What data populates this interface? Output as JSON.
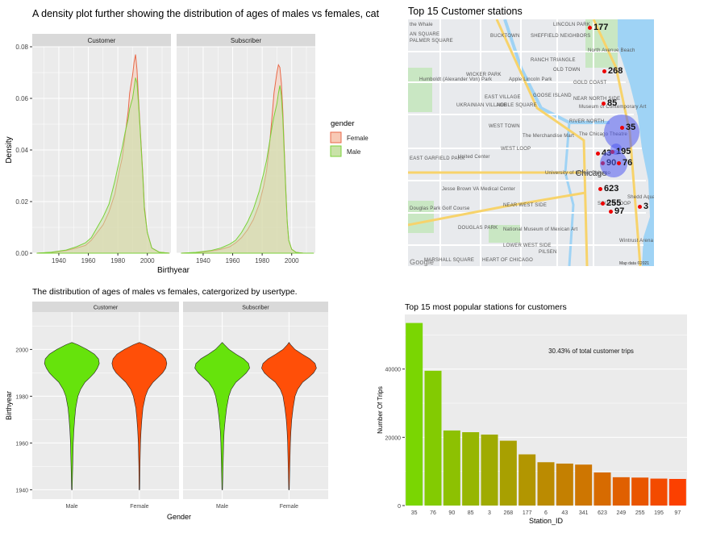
{
  "density_title": "A density plot further showing the distribution of ages of males vs females, catergorized by usertype.",
  "map_title": "Top 15 Customer stations",
  "violin_title": "The distribution of ages of males vs females, catergorized by usertype.",
  "bar_title": "Top 15 most popular stations for customers",
  "colors": {
    "female_fill": "#f8c9b5",
    "female_line": "#e8694a",
    "male_fill": "#c9e2a8",
    "male_line": "#7bd13a",
    "violin_male": "#66e30c",
    "violin_female": "#ff4f08",
    "panel_bg": "#ebebeb",
    "strip_bg": "#d9d9d9"
  },
  "chart_data": [
    {
      "type": "area",
      "facets": [
        "Customer",
        "Subscriber"
      ],
      "xlabel": "Birthyear",
      "ylabel": "Density",
      "xticks": [
        "1940",
        "1960",
        "1980",
        "2000"
      ],
      "yticks": [
        "0.00",
        "0.02",
        "0.04",
        "0.06",
        "0.08"
      ],
      "xlim": [
        1922,
        2016
      ],
      "ylim": [
        0,
        0.08
      ],
      "legend": {
        "title": "gender",
        "placement": "right",
        "items": [
          "Female",
          "Male"
        ]
      },
      "series": [
        {
          "facet": "Customer",
          "name": "Female",
          "x": [
            1925,
            1935,
            1945,
            1952,
            1958,
            1962,
            1966,
            1970,
            1974,
            1978,
            1981,
            1983,
            1985,
            1987,
            1988,
            1990,
            1991,
            1992,
            1993,
            1994,
            1995,
            1996,
            1997,
            1998,
            2000,
            2003,
            2008,
            2015
          ],
          "y": [
            0,
            0.0003,
            0.001,
            0.002,
            0.003,
            0.005,
            0.008,
            0.011,
            0.016,
            0.023,
            0.032,
            0.037,
            0.046,
            0.055,
            0.062,
            0.069,
            0.074,
            0.077,
            0.071,
            0.06,
            0.05,
            0.04,
            0.03,
            0.018,
            0.008,
            0.002,
            0.0004,
            0
          ]
        },
        {
          "facet": "Customer",
          "name": "Male",
          "x": [
            1925,
            1935,
            1945,
            1952,
            1958,
            1962,
            1966,
            1970,
            1974,
            1978,
            1981,
            1983,
            1985,
            1987,
            1988,
            1990,
            1991,
            1992,
            1993,
            1994,
            1995,
            1996,
            1997,
            1998,
            2000,
            2003,
            2008,
            2015
          ],
          "y": [
            0,
            0.0004,
            0.0012,
            0.0025,
            0.004,
            0.006,
            0.01,
            0.014,
            0.019,
            0.028,
            0.036,
            0.041,
            0.047,
            0.052,
            0.056,
            0.06,
            0.064,
            0.068,
            0.066,
            0.058,
            0.049,
            0.039,
            0.029,
            0.017,
            0.008,
            0.002,
            0.0004,
            0
          ]
        },
        {
          "facet": "Subscriber",
          "name": "Female",
          "x": [
            1925,
            1935,
            1945,
            1952,
            1958,
            1962,
            1966,
            1970,
            1974,
            1978,
            1981,
            1983,
            1985,
            1987,
            1988,
            1990,
            1991,
            1992,
            1993,
            1994,
            1995,
            1996,
            1997,
            1998,
            2000,
            2003,
            2008,
            2015
          ],
          "y": [
            0,
            0.0002,
            0.0008,
            0.0015,
            0.0025,
            0.004,
            0.006,
            0.009,
            0.013,
            0.019,
            0.026,
            0.032,
            0.042,
            0.055,
            0.062,
            0.07,
            0.073,
            0.072,
            0.066,
            0.055,
            0.04,
            0.025,
            0.012,
            0.005,
            0.0015,
            0.0003,
            0,
            0
          ]
        },
        {
          "facet": "Subscriber",
          "name": "Male",
          "x": [
            1925,
            1935,
            1945,
            1952,
            1958,
            1962,
            1966,
            1970,
            1974,
            1978,
            1981,
            1983,
            1985,
            1987,
            1988,
            1990,
            1991,
            1992,
            1993,
            1994,
            1995,
            1996,
            1997,
            1998,
            2000,
            2003,
            2008,
            2015
          ],
          "y": [
            0,
            0.0003,
            0.001,
            0.002,
            0.0035,
            0.005,
            0.008,
            0.012,
            0.017,
            0.024,
            0.031,
            0.036,
            0.043,
            0.05,
            0.053,
            0.058,
            0.062,
            0.065,
            0.061,
            0.052,
            0.038,
            0.024,
            0.012,
            0.005,
            0.0015,
            0.0003,
            0,
            0
          ]
        }
      ]
    },
    {
      "type": "violin",
      "facets": [
        "Customer",
        "Subscriber"
      ],
      "categories": [
        "Male",
        "Female"
      ],
      "xlabel": "Gender",
      "ylabel": "Birthyear",
      "yticks": [
        "1940",
        "1960",
        "1980",
        "2000"
      ],
      "ylim": [
        1936,
        2016
      ],
      "profile_y": [
        1940,
        1950,
        1960,
        1965,
        1970,
        1975,
        1980,
        1983,
        1986,
        1988,
        1990,
        1992,
        1994,
        1996,
        1998,
        2000,
        2002,
        2003
      ],
      "violins": [
        {
          "facet": "Customer",
          "category": "Male",
          "width": [
            0.01,
            0.03,
            0.05,
            0.07,
            0.1,
            0.14,
            0.22,
            0.32,
            0.48,
            0.66,
            0.82,
            0.93,
            1.0,
            0.97,
            0.82,
            0.55,
            0.22,
            0.0
          ]
        },
        {
          "facet": "Customer",
          "category": "Female",
          "width": [
            0.01,
            0.02,
            0.04,
            0.06,
            0.09,
            0.13,
            0.22,
            0.32,
            0.5,
            0.68,
            0.85,
            0.96,
            1.0,
            0.96,
            0.82,
            0.55,
            0.22,
            0.0
          ]
        },
        {
          "facet": "Subscriber",
          "category": "Male",
          "width": [
            0.01,
            0.03,
            0.05,
            0.07,
            0.11,
            0.16,
            0.24,
            0.33,
            0.5,
            0.7,
            0.88,
            1.0,
            0.96,
            0.78,
            0.5,
            0.25,
            0.08,
            0.0
          ]
        },
        {
          "facet": "Subscriber",
          "category": "Female",
          "width": [
            0.01,
            0.03,
            0.05,
            0.07,
            0.1,
            0.15,
            0.22,
            0.32,
            0.5,
            0.72,
            0.9,
            1.0,
            0.95,
            0.76,
            0.48,
            0.22,
            0.06,
            0.0
          ]
        }
      ]
    },
    {
      "type": "bar",
      "categories": [
        "35",
        "76",
        "90",
        "85",
        "3",
        "268",
        "177",
        "6",
        "43",
        "341",
        "623",
        "249",
        "255",
        "195",
        "97"
      ],
      "values": [
        53500,
        39500,
        22000,
        21500,
        20800,
        19000,
        15000,
        12700,
        12300,
        12000,
        9700,
        8300,
        8200,
        7900,
        7800
      ],
      "xlabel": "Station_ID",
      "ylabel": "Number Of Trips",
      "yticks": [
        "0",
        "20000",
        "40000"
      ],
      "ylim": [
        0,
        56000
      ],
      "annotation": "30.43% of total customer trips"
    }
  ],
  "map": {
    "labels": [
      "the Whale",
      "AN SQUARE",
      "PALMER SQUARE",
      "BUCKTOWN",
      "SHEFFIELD NEIGHBORS",
      "LINCOLN PARK",
      "North Avenue Beach",
      "RANCH TRIANGLE",
      "OLD TOWN",
      "WICKER PARK",
      "Apple Lincoln Park",
      "Humboldt (Alexander Von) Park",
      "GOLD COAST",
      "EAST VILLAGE",
      "GOOSE ISLAND",
      "NEAR NORTH SIDE",
      "UKRAINIAN VILLAGE",
      "NOBLE SQUARE",
      "Museum of Contemporary Art",
      "RIVER NORTH",
      "WEST TOWN",
      "The Chicago Theatre",
      "The Merchandise Mart",
      "WEST LOOP",
      "United Center",
      "EAST GARFIELD PARK",
      "Chicago",
      "University of Illinois Chicago",
      "Jesse Brown VA Medical Center",
      "NEAR WEST SIDE",
      "SOUTH LOOP",
      "Douglas Park Golf Course",
      "DOUGLAS PARK",
      "National Museum of Mexican Art",
      "LOWER WEST SIDE",
      "PILSEN",
      "Shedd Aquarium",
      "Wintrust Arena",
      "MARSHALL SQUARE",
      "HEART OF CHICAGO",
      "Google",
      "Map data ©2021"
    ],
    "stations": [
      {
        "label": "177"
      },
      {
        "label": "268"
      },
      {
        "label": "85"
      },
      {
        "label": "35"
      },
      {
        "label": "43"
      },
      {
        "label": "195"
      },
      {
        "label": "90"
      },
      {
        "label": "76"
      },
      {
        "label": "623"
      },
      {
        "label": "255"
      },
      {
        "label": "97"
      },
      {
        "label": "3"
      }
    ]
  }
}
